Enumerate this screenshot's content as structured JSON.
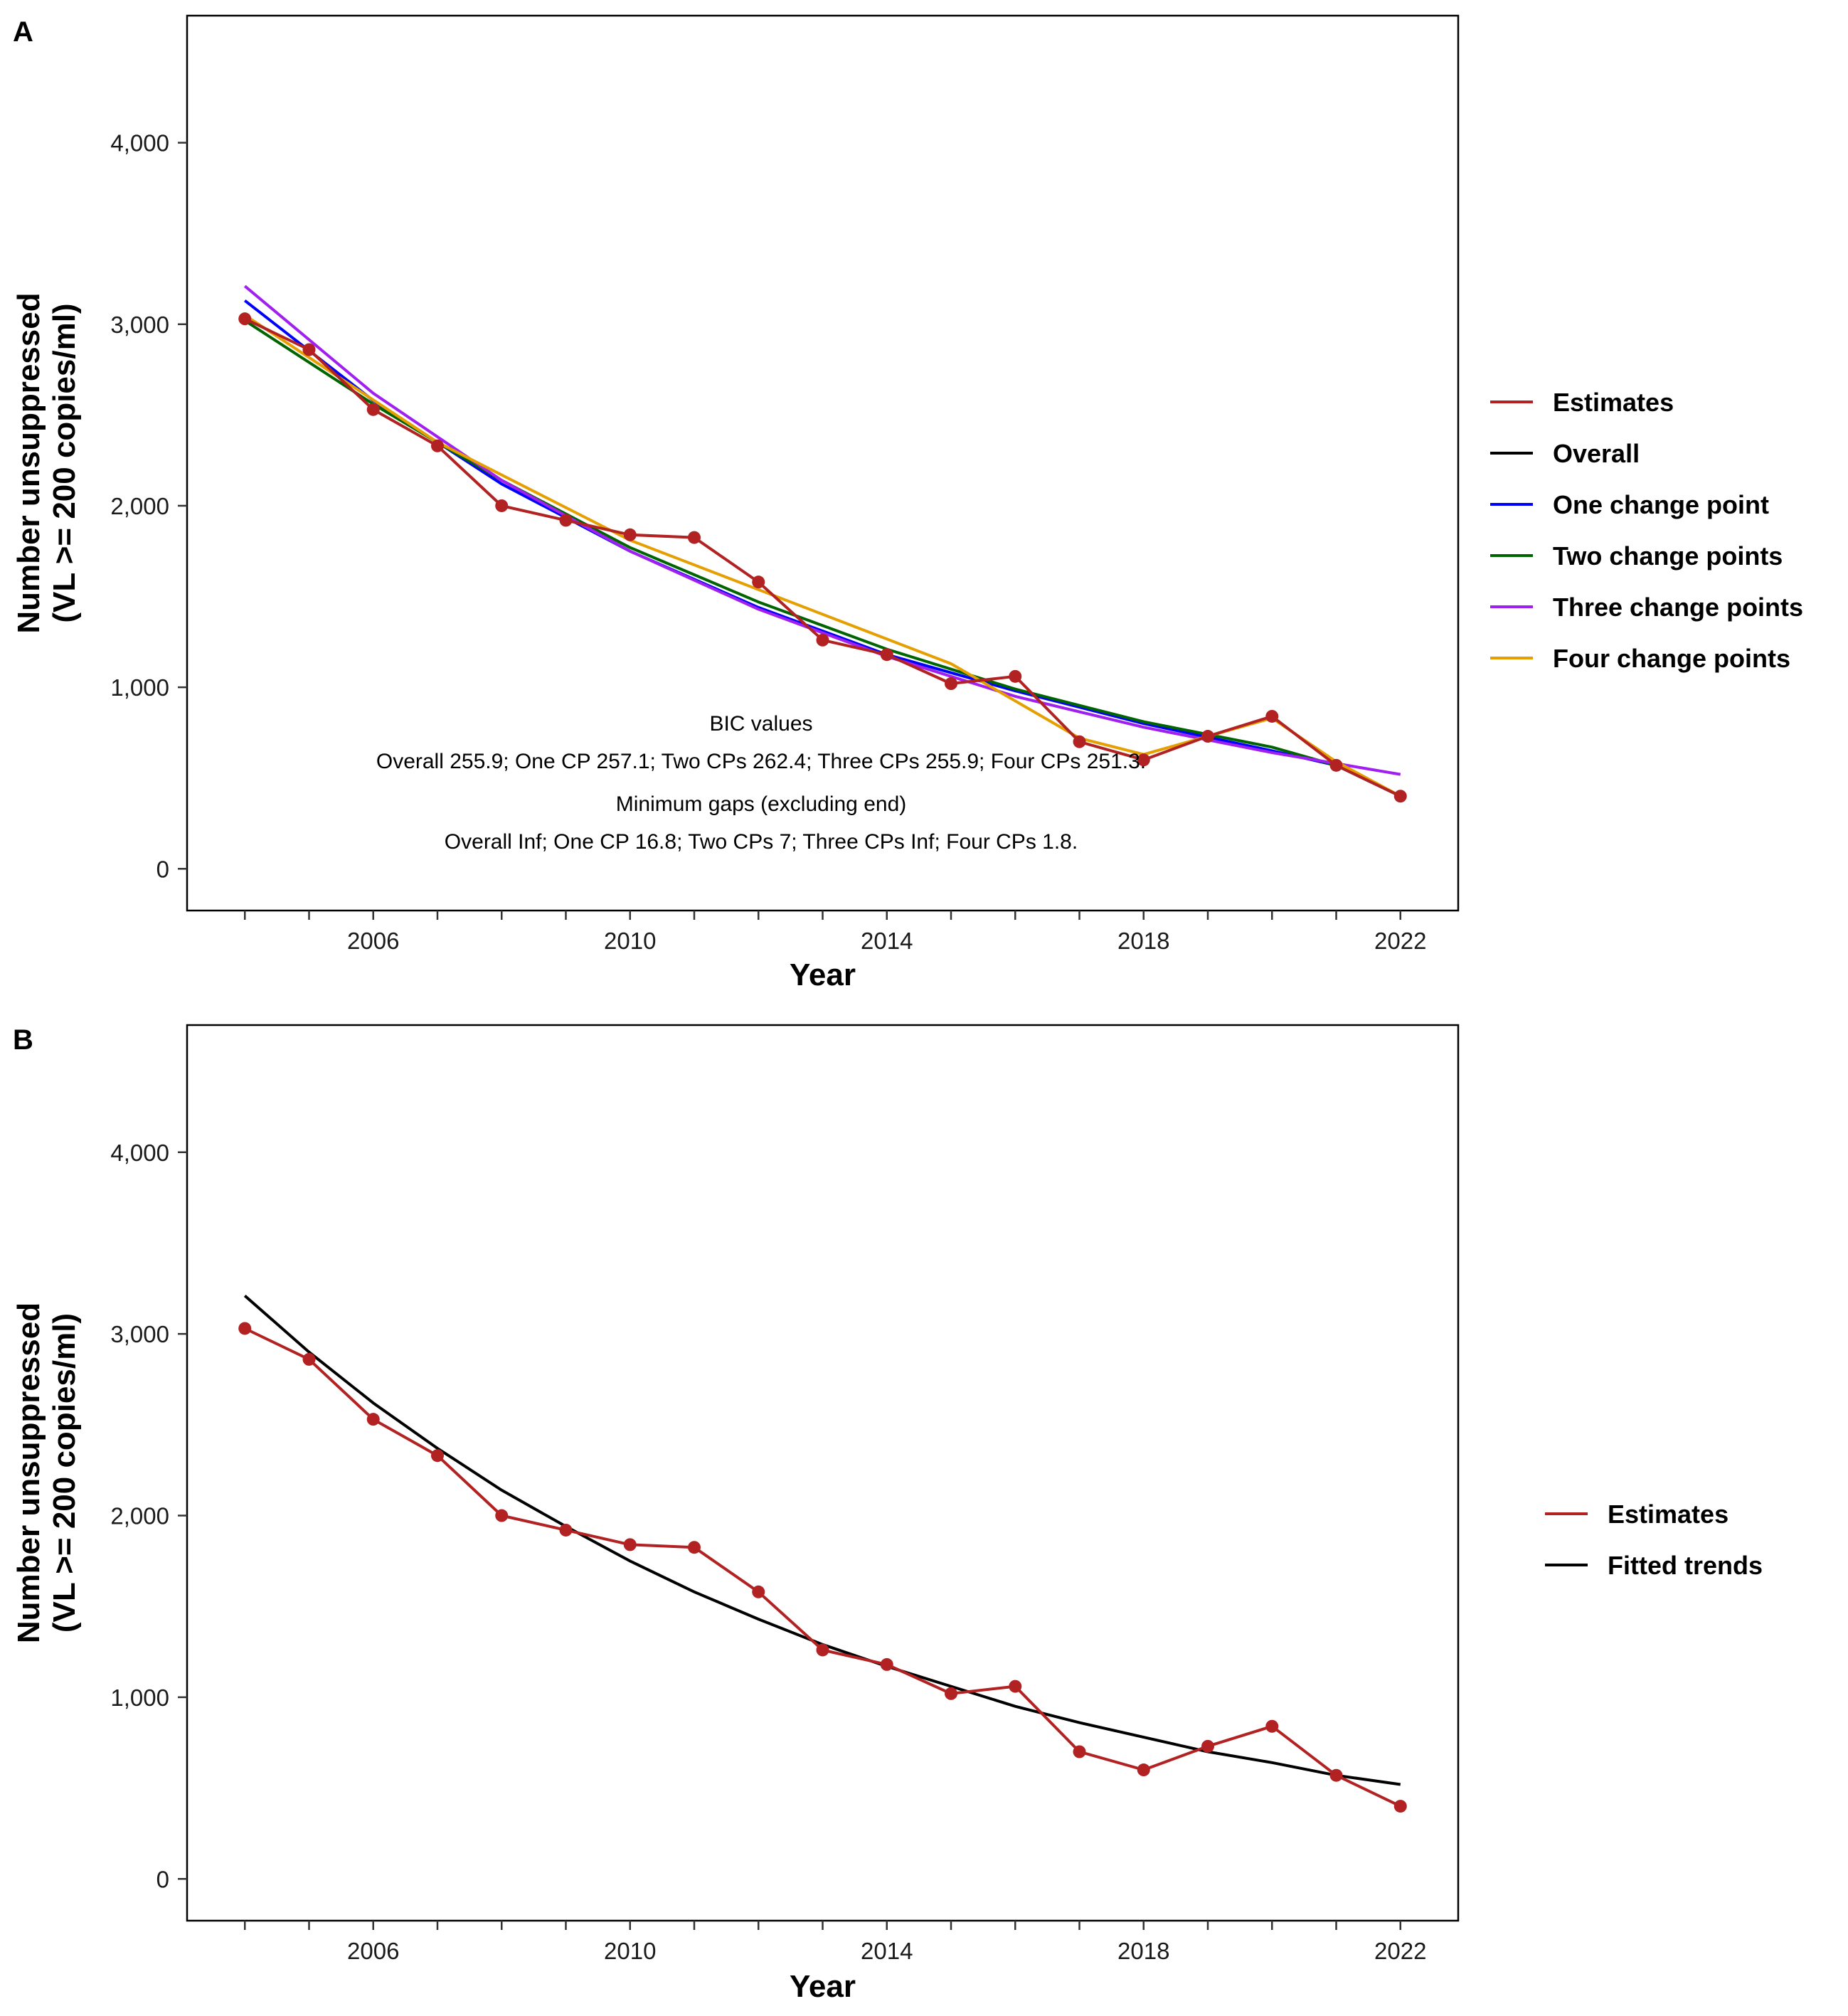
{
  "chart_data": [
    {
      "type": "line",
      "panel_label": "A",
      "xlabel": "Year",
      "ylabel_lines": [
        "Number unsuppressed",
        "(VL >= 200 copies/ml)"
      ],
      "xlim": [
        2003.1,
        2022.9
      ],
      "ylim": [
        -230,
        4700
      ],
      "x_ticks": [
        2006,
        2010,
        2014,
        2018,
        2022
      ],
      "x_tick_labels": [
        "2006",
        "2010",
        "2014",
        "2018",
        "2022"
      ],
      "y_ticks": [
        0,
        1000,
        2000,
        3000,
        4000
      ],
      "y_tick_labels": [
        "0",
        "1,000",
        "2,000",
        "3,000",
        "4,000"
      ],
      "grid": false,
      "legend_position": "right",
      "series": [
        {
          "name": "Estimates",
          "color": "#B22222",
          "markers": true,
          "x": [
            2004,
            2005,
            2006,
            2007,
            2008,
            2009,
            2010,
            2011,
            2012,
            2013,
            2014,
            2015,
            2016,
            2017,
            2018,
            2019,
            2020,
            2021,
            2022
          ],
          "y": [
            3030,
            2860,
            2530,
            2330,
            2000,
            1920,
            1840,
            1825,
            1580,
            1260,
            1180,
            1020,
            1060,
            700,
            600,
            730,
            840,
            570,
            400
          ]
        },
        {
          "name": "Overall",
          "color": "#000000",
          "markers": false,
          "x": [],
          "y": []
        },
        {
          "name": "One change point",
          "color": "#0000FF",
          "markers": false,
          "x": [
            2004,
            2006,
            2008,
            2010,
            2012,
            2014,
            2016,
            2018,
            2020,
            2021,
            2022
          ],
          "y": [
            3130,
            2580,
            2120,
            1750,
            1440,
            1180,
            980,
            800,
            650,
            570,
            400
          ]
        },
        {
          "name": "Two change points",
          "color": "#006400",
          "markers": false,
          "x": [
            2004,
            2006,
            2008,
            2010,
            2012,
            2014,
            2016,
            2018,
            2020,
            2021,
            2022
          ],
          "y": [
            3020,
            2560,
            2140,
            1770,
            1470,
            1210,
            990,
            810,
            670,
            570,
            400
          ]
        },
        {
          "name": "Three change points",
          "color": "#A020F0",
          "markers": false,
          "x": [
            2004,
            2006,
            2008,
            2010,
            2012,
            2014,
            2016,
            2018,
            2020,
            2022
          ],
          "y": [
            3210,
            2620,
            2140,
            1750,
            1430,
            1170,
            950,
            780,
            640,
            520
          ]
        },
        {
          "name": "Four change points",
          "color": "#E69F00",
          "markers": false,
          "x": [
            2004,
            2007,
            2010,
            2015,
            2017,
            2018,
            2020,
            2021,
            2022
          ],
          "y": [
            3050,
            2350,
            1810,
            1130,
            720,
            630,
            830,
            590,
            400
          ]
        }
      ],
      "annotations": [
        "BIC values",
        "Overall 255.9; One CP 257.1; Two CPs 262.4; Three CPs 255.9; Four CPs 251.3.",
        "Minimum gaps (excluding end)",
        "Overall Inf; One CP 16.8; Two CPs 7; Three CPs Inf; Four CPs 1.8."
      ]
    },
    {
      "type": "line",
      "panel_label": "B",
      "xlabel": "Year",
      "ylabel_lines": [
        "Number unsuppressed",
        "(VL >= 200 copies/ml)"
      ],
      "xlim": [
        2003.1,
        2022.9
      ],
      "ylim": [
        -230,
        4700
      ],
      "x_ticks": [
        2006,
        2010,
        2014,
        2018,
        2022
      ],
      "x_tick_labels": [
        "2006",
        "2010",
        "2014",
        "2018",
        "2022"
      ],
      "y_ticks": [
        0,
        1000,
        2000,
        3000,
        4000
      ],
      "y_tick_labels": [
        "0",
        "1,000",
        "2,000",
        "3,000",
        "4,000"
      ],
      "grid": false,
      "legend_position": "right",
      "series": [
        {
          "name": "Estimates",
          "color": "#B22222",
          "markers": true,
          "x": [
            2004,
            2005,
            2006,
            2007,
            2008,
            2009,
            2010,
            2011,
            2012,
            2013,
            2014,
            2015,
            2016,
            2017,
            2018,
            2019,
            2020,
            2021,
            2022
          ],
          "y": [
            3030,
            2860,
            2530,
            2330,
            2000,
            1920,
            1840,
            1825,
            1580,
            1260,
            1180,
            1020,
            1060,
            700,
            600,
            730,
            840,
            570,
            400
          ]
        },
        {
          "name": "Fitted trends",
          "color": "#000000",
          "markers": false,
          "x": [
            2004,
            2005,
            2006,
            2007,
            2008,
            2009,
            2010,
            2011,
            2012,
            2013,
            2014,
            2015,
            2016,
            2017,
            2018,
            2019,
            2020,
            2021,
            2022
          ],
          "y": [
            3210,
            2900,
            2620,
            2370,
            2140,
            1940,
            1750,
            1580,
            1430,
            1290,
            1170,
            1060,
            950,
            860,
            780,
            700,
            640,
            570,
            520
          ]
        }
      ],
      "annotations": []
    }
  ]
}
